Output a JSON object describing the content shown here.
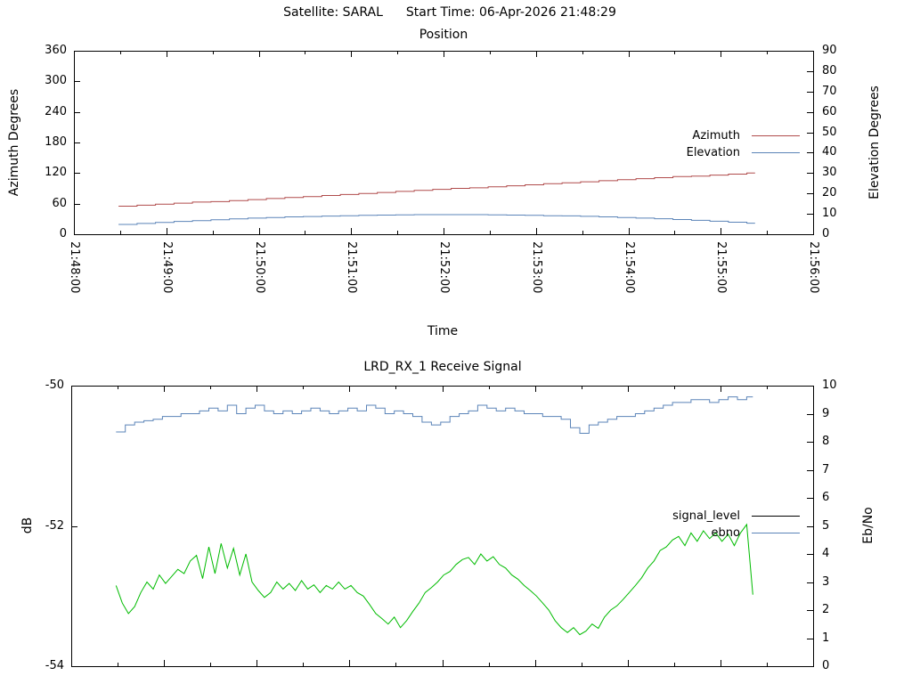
{
  "header": {
    "satellite": "Satellite: SARAL",
    "start_time": "Start Time: 06-Apr-2026 21:48:29"
  },
  "colors": {
    "background": "#ffffff",
    "text": "#000000",
    "axis": "#000000",
    "azimuth": "#b04b4b",
    "elevation": "#5b84b8",
    "signal_level": "#00bb00",
    "signal_level_legend": "#000000",
    "ebno": "#5b84b8"
  },
  "chart_data": [
    {
      "type": "line",
      "title": "Position",
      "xlabel": "Time",
      "ylabel": "Azimuth Degrees",
      "y2label": "Elevation Degrees",
      "x_axis": {
        "min": 0,
        "max": 480,
        "major_tick_sec": 60,
        "minor_tick_sec": 30,
        "show_labels": true,
        "tick_labels": [
          "21:48:00",
          "21:49:00",
          "21:50:00",
          "21:51:00",
          "21:52:00",
          "21:53:00",
          "21:54:00",
          "21:55:00",
          "21:56:00"
        ]
      },
      "y_axis": {
        "min": 0,
        "max": 360,
        "tick_step": 60
      },
      "y2_axis": {
        "min": 0,
        "max": 90,
        "tick_step": 10
      },
      "grid": false,
      "legend": {
        "position": "inside-right",
        "entries": [
          {
            "label": "Azimuth",
            "color": "#b04b4b"
          },
          {
            "label": "Elevation",
            "color": "#5b84b8"
          }
        ]
      },
      "series": [
        {
          "name": "Azimuth",
          "axis": "y1",
          "color": "#b04b4b",
          "interp": "step",
          "points": [
            [
              29,
              55
            ],
            [
              41,
              57
            ],
            [
              53,
              59
            ],
            [
              65,
              61
            ],
            [
              77,
              63
            ],
            [
              89,
              64
            ],
            [
              101,
              66
            ],
            [
              113,
              68
            ],
            [
              125,
              70
            ],
            [
              137,
              72
            ],
            [
              149,
              74
            ],
            [
              161,
              76
            ],
            [
              173,
              78
            ],
            [
              185,
              80
            ],
            [
              197,
              82
            ],
            [
              209,
              84
            ],
            [
              221,
              86
            ],
            [
              233,
              88
            ],
            [
              245,
              90
            ],
            [
              257,
              91
            ],
            [
              269,
              93
            ],
            [
              281,
              95
            ],
            [
              293,
              97
            ],
            [
              305,
              99
            ],
            [
              317,
              101
            ],
            [
              329,
              103
            ],
            [
              341,
              105
            ],
            [
              353,
              107
            ],
            [
              365,
              109
            ],
            [
              377,
              111
            ],
            [
              389,
              113
            ],
            [
              401,
              114
            ],
            [
              413,
              116
            ],
            [
              425,
              118
            ],
            [
              437,
              120
            ],
            [
              442,
              121
            ]
          ]
        },
        {
          "name": "Elevation",
          "axis": "y2",
          "color": "#5b84b8",
          "interp": "step",
          "points": [
            [
              29,
              4.8
            ],
            [
              41,
              5.3
            ],
            [
              53,
              5.8
            ],
            [
              65,
              6.3
            ],
            [
              77,
              6.7
            ],
            [
              89,
              7.1
            ],
            [
              101,
              7.5
            ],
            [
              113,
              7.9
            ],
            [
              125,
              8.2
            ],
            [
              137,
              8.5
            ],
            [
              149,
              8.7
            ],
            [
              161,
              8.9
            ],
            [
              173,
              9.1
            ],
            [
              185,
              9.3
            ],
            [
              197,
              9.4
            ],
            [
              209,
              9.5
            ],
            [
              221,
              9.6
            ],
            [
              233,
              9.6
            ],
            [
              245,
              9.6
            ],
            [
              257,
              9.6
            ],
            [
              269,
              9.5
            ],
            [
              281,
              9.4
            ],
            [
              293,
              9.3
            ],
            [
              305,
              9.1
            ],
            [
              317,
              9.0
            ],
            [
              329,
              8.8
            ],
            [
              341,
              8.5
            ],
            [
              353,
              8.2
            ],
            [
              365,
              7.9
            ],
            [
              377,
              7.6
            ],
            [
              389,
              7.2
            ],
            [
              401,
              6.8
            ],
            [
              413,
              6.4
            ],
            [
              425,
              5.9
            ],
            [
              437,
              5.4
            ],
            [
              442,
              5.2
            ]
          ]
        }
      ]
    },
    {
      "type": "line",
      "title": "LRD_RX_1 Receive Signal",
      "xlabel": "",
      "ylabel": "dB",
      "y2label": "Eb/No",
      "x_axis": {
        "min": 0,
        "max": 480,
        "major_tick_sec": 60,
        "minor_tick_sec": 30,
        "show_labels": false,
        "tick_labels": []
      },
      "y_axis": {
        "min": -54,
        "max": -50,
        "tick_step": 2
      },
      "y2_axis": {
        "min": 0,
        "max": 10,
        "tick_step": 1
      },
      "grid": false,
      "legend": {
        "position": "inside-right",
        "entries": [
          {
            "label": "signal_level",
            "color": "#000000"
          },
          {
            "label": "ebno",
            "color": "#5b84b8"
          }
        ]
      },
      "series": [
        {
          "name": "signal_level",
          "axis": "y1",
          "color": "#00bb00",
          "interp": "linear",
          "points": [
            [
              29,
              -52.85
            ],
            [
              33,
              -53.1
            ],
            [
              37,
              -53.25
            ],
            [
              41,
              -53.15
            ],
            [
              45,
              -52.95
            ],
            [
              49,
              -52.8
            ],
            [
              53,
              -52.9
            ],
            [
              57,
              -52.7
            ],
            [
              61,
              -52.82
            ],
            [
              65,
              -52.72
            ],
            [
              69,
              -52.62
            ],
            [
              73,
              -52.68
            ],
            [
              77,
              -52.5
            ],
            [
              81,
              -52.42
            ],
            [
              85,
              -52.75
            ],
            [
              89,
              -52.3
            ],
            [
              93,
              -52.68
            ],
            [
              97,
              -52.25
            ],
            [
              101,
              -52.6
            ],
            [
              105,
              -52.32
            ],
            [
              109,
              -52.7
            ],
            [
              113,
              -52.4
            ],
            [
              117,
              -52.8
            ],
            [
              121,
              -52.92
            ],
            [
              125,
              -53.02
            ],
            [
              129,
              -52.95
            ],
            [
              133,
              -52.8
            ],
            [
              137,
              -52.9
            ],
            [
              141,
              -52.82
            ],
            [
              145,
              -52.92
            ],
            [
              149,
              -52.78
            ],
            [
              153,
              -52.9
            ],
            [
              157,
              -52.84
            ],
            [
              161,
              -52.95
            ],
            [
              165,
              -52.85
            ],
            [
              169,
              -52.9
            ],
            [
              173,
              -52.8
            ],
            [
              177,
              -52.9
            ],
            [
              181,
              -52.85
            ],
            [
              185,
              -52.95
            ],
            [
              189,
              -53.0
            ],
            [
              193,
              -53.12
            ],
            [
              197,
              -53.25
            ],
            [
              201,
              -53.32
            ],
            [
              205,
              -53.4
            ],
            [
              209,
              -53.3
            ],
            [
              213,
              -53.45
            ],
            [
              217,
              -53.35
            ],
            [
              221,
              -53.22
            ],
            [
              225,
              -53.1
            ],
            [
              229,
              -52.95
            ],
            [
              233,
              -52.88
            ],
            [
              237,
              -52.8
            ],
            [
              241,
              -52.7
            ],
            [
              245,
              -52.65
            ],
            [
              249,
              -52.55
            ],
            [
              253,
              -52.48
            ],
            [
              257,
              -52.45
            ],
            [
              261,
              -52.55
            ],
            [
              265,
              -52.4
            ],
            [
              269,
              -52.5
            ],
            [
              273,
              -52.44
            ],
            [
              277,
              -52.55
            ],
            [
              281,
              -52.6
            ],
            [
              285,
              -52.7
            ],
            [
              289,
              -52.76
            ],
            [
              293,
              -52.85
            ],
            [
              297,
              -52.92
            ],
            [
              301,
              -53.0
            ],
            [
              305,
              -53.1
            ],
            [
              309,
              -53.2
            ],
            [
              313,
              -53.35
            ],
            [
              317,
              -53.45
            ],
            [
              321,
              -53.52
            ],
            [
              325,
              -53.45
            ],
            [
              329,
              -53.55
            ],
            [
              333,
              -53.5
            ],
            [
              337,
              -53.4
            ],
            [
              341,
              -53.46
            ],
            [
              345,
              -53.3
            ],
            [
              349,
              -53.2
            ],
            [
              353,
              -53.14
            ],
            [
              357,
              -53.05
            ],
            [
              361,
              -52.95
            ],
            [
              365,
              -52.85
            ],
            [
              369,
              -52.74
            ],
            [
              373,
              -52.6
            ],
            [
              377,
              -52.5
            ],
            [
              381,
              -52.35
            ],
            [
              385,
              -52.3
            ],
            [
              389,
              -52.2
            ],
            [
              393,
              -52.15
            ],
            [
              397,
              -52.28
            ],
            [
              401,
              -52.1
            ],
            [
              405,
              -52.22
            ],
            [
              409,
              -52.07
            ],
            [
              413,
              -52.18
            ],
            [
              417,
              -52.1
            ],
            [
              421,
              -52.22
            ],
            [
              425,
              -52.12
            ],
            [
              429,
              -52.28
            ],
            [
              433,
              -52.1
            ],
            [
              437,
              -51.98
            ],
            [
              441,
              -52.98
            ]
          ]
        },
        {
          "name": "ebno",
          "axis": "y2",
          "color": "#5b84b8",
          "interp": "step",
          "points": [
            [
              29,
              8.35
            ],
            [
              35,
              8.6
            ],
            [
              41,
              8.7
            ],
            [
              47,
              8.75
            ],
            [
              53,
              8.8
            ],
            [
              59,
              8.9
            ],
            [
              65,
              8.9
            ],
            [
              71,
              9.0
            ],
            [
              77,
              9.0
            ],
            [
              83,
              9.1
            ],
            [
              89,
              9.2
            ],
            [
              95,
              9.1
            ],
            [
              101,
              9.3
            ],
            [
              107,
              9.0
            ],
            [
              113,
              9.2
            ],
            [
              119,
              9.3
            ],
            [
              125,
              9.1
            ],
            [
              131,
              9.0
            ],
            [
              137,
              9.1
            ],
            [
              143,
              9.0
            ],
            [
              149,
              9.1
            ],
            [
              155,
              9.2
            ],
            [
              161,
              9.1
            ],
            [
              167,
              9.0
            ],
            [
              173,
              9.1
            ],
            [
              179,
              9.2
            ],
            [
              185,
              9.1
            ],
            [
              191,
              9.3
            ],
            [
              197,
              9.2
            ],
            [
              203,
              9.0
            ],
            [
              209,
              9.1
            ],
            [
              215,
              9.0
            ],
            [
              221,
              8.9
            ],
            [
              227,
              8.7
            ],
            [
              233,
              8.6
            ],
            [
              239,
              8.7
            ],
            [
              245,
              8.9
            ],
            [
              251,
              9.0
            ],
            [
              257,
              9.1
            ],
            [
              263,
              9.3
            ],
            [
              269,
              9.2
            ],
            [
              275,
              9.1
            ],
            [
              281,
              9.2
            ],
            [
              287,
              9.1
            ],
            [
              293,
              9.0
            ],
            [
              299,
              9.0
            ],
            [
              305,
              8.9
            ],
            [
              311,
              8.9
            ],
            [
              317,
              8.8
            ],
            [
              323,
              8.5
            ],
            [
              329,
              8.3
            ],
            [
              335,
              8.6
            ],
            [
              341,
              8.7
            ],
            [
              347,
              8.8
            ],
            [
              353,
              8.9
            ],
            [
              359,
              8.9
            ],
            [
              365,
              9.0
            ],
            [
              371,
              9.1
            ],
            [
              377,
              9.2
            ],
            [
              383,
              9.3
            ],
            [
              389,
              9.4
            ],
            [
              395,
              9.4
            ],
            [
              401,
              9.5
            ],
            [
              407,
              9.5
            ],
            [
              413,
              9.4
            ],
            [
              419,
              9.5
            ],
            [
              425,
              9.6
            ],
            [
              431,
              9.5
            ],
            [
              437,
              9.6
            ],
            [
              441,
              9.6
            ]
          ]
        }
      ]
    }
  ]
}
